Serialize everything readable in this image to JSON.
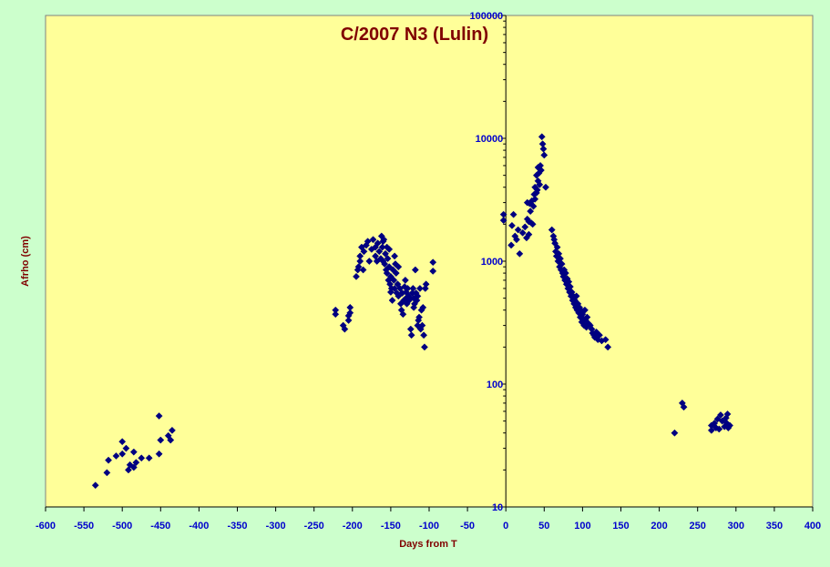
{
  "colors": {
    "background": "#ccffcc",
    "plot_area": "#ffff99",
    "marker": "#000080",
    "title": "#800000",
    "tick_labels": "#0000cc"
  },
  "chart_data": {
    "type": "scatter",
    "title": "C/2007 N3 (Lulin)",
    "xlabel": "Days from T",
    "ylabel": "Afrho (cm)",
    "xlim": [
      -600,
      400
    ],
    "ylim": [
      10,
      100000
    ],
    "y_scale": "log",
    "x_ticks": [
      -600,
      -550,
      -500,
      -450,
      -400,
      -350,
      -300,
      -250,
      -200,
      -150,
      -100,
      -50,
      0,
      50,
      100,
      150,
      200,
      250,
      300,
      350,
      400
    ],
    "y_ticks": [
      10,
      100,
      1000,
      10000,
      100000
    ],
    "y_axis_crosses_at_x": 0,
    "grid": false,
    "marker": "diamond",
    "series": [
      {
        "points": [
          [
            -535,
            15
          ],
          [
            -520,
            19
          ],
          [
            -518,
            24
          ],
          [
            -508,
            26
          ],
          [
            -500,
            34
          ],
          [
            -500,
            27
          ],
          [
            -495,
            30
          ],
          [
            -492,
            20
          ],
          [
            -490,
            22
          ],
          [
            -485,
            28
          ],
          [
            -485,
            21
          ],
          [
            -482,
            23
          ],
          [
            -475,
            25
          ],
          [
            -465,
            25
          ],
          [
            -452,
            55
          ],
          [
            -452,
            27
          ],
          [
            -450,
            35
          ],
          [
            -440,
            38
          ],
          [
            -437,
            35
          ],
          [
            -435,
            42
          ],
          [
            -222,
            370
          ],
          [
            -222,
            400
          ],
          [
            -212,
            300
          ],
          [
            -210,
            280
          ],
          [
            -205,
            330
          ],
          [
            -205,
            360
          ],
          [
            -203,
            380
          ],
          [
            -203,
            420
          ],
          [
            -195,
            750
          ],
          [
            -193,
            850
          ],
          [
            -192,
            900
          ],
          [
            -190,
            1000
          ],
          [
            -190,
            1100
          ],
          [
            -188,
            1300
          ],
          [
            -186,
            850
          ],
          [
            -185,
            1200
          ],
          [
            -182,
            1350
          ],
          [
            -180,
            1450
          ],
          [
            -178,
            1000
          ],
          [
            -175,
            1250
          ],
          [
            -173,
            1500
          ],
          [
            -170,
            1300
          ],
          [
            -170,
            1100
          ],
          [
            -168,
            1000
          ],
          [
            -167,
            1400
          ],
          [
            -165,
            1200
          ],
          [
            -163,
            1050
          ],
          [
            -162,
            1600
          ],
          [
            -161,
            1300
          ],
          [
            -160,
            1450
          ],
          [
            -160,
            1000
          ],
          [
            -159,
            1500
          ],
          [
            -158,
            950
          ],
          [
            -157,
            1150
          ],
          [
            -156,
            850
          ],
          [
            -155,
            1300
          ],
          [
            -155,
            800
          ],
          [
            -154,
            1050
          ],
          [
            -153,
            700
          ],
          [
            -152,
            1250
          ],
          [
            -152,
            900
          ],
          [
            -151,
            650
          ],
          [
            -150,
            750
          ],
          [
            -150,
            560
          ],
          [
            -149,
            600
          ],
          [
            -148,
            480
          ],
          [
            -147,
            850
          ],
          [
            -146,
            700
          ],
          [
            -145,
            1100
          ],
          [
            -145,
            600
          ],
          [
            -144,
            950
          ],
          [
            -143,
            800
          ],
          [
            -142,
            550
          ],
          [
            -141,
            650
          ],
          [
            -140,
            900
          ],
          [
            -140,
            520
          ],
          [
            -138,
            600
          ],
          [
            -137,
            450
          ],
          [
            -136,
            400
          ],
          [
            -135,
            550
          ],
          [
            -134,
            370
          ],
          [
            -133,
            480
          ],
          [
            -132,
            620
          ],
          [
            -131,
            700
          ],
          [
            -130,
            500
          ],
          [
            -130,
            560
          ],
          [
            -129,
            450
          ],
          [
            -128,
            600
          ],
          [
            -127,
            520
          ],
          [
            -126,
            480
          ],
          [
            -125,
            500
          ],
          [
            -124,
            280
          ],
          [
            -123,
            250
          ],
          [
            -122,
            550
          ],
          [
            -121,
            600
          ],
          [
            -120,
            420
          ],
          [
            -120,
            500
          ],
          [
            -119,
            450
          ],
          [
            -118,
            850
          ],
          [
            -117,
            550
          ],
          [
            -116,
            480
          ],
          [
            -115,
            520
          ],
          [
            -115,
            300
          ],
          [
            -114,
            330
          ],
          [
            -113,
            350
          ],
          [
            -112,
            600
          ],
          [
            -111,
            280
          ],
          [
            -110,
            400
          ],
          [
            -109,
            300
          ],
          [
            -108,
            420
          ],
          [
            -107,
            250
          ],
          [
            -106,
            200
          ],
          [
            -105,
            600
          ],
          [
            -104,
            650
          ],
          [
            -95,
            830
          ],
          [
            -95,
            980
          ],
          [
            -3,
            2400
          ],
          [
            -3,
            2150
          ],
          [
            7,
            1350
          ],
          [
            8,
            1950
          ],
          [
            10,
            2400
          ],
          [
            12,
            1600
          ],
          [
            14,
            1500
          ],
          [
            16,
            1800
          ],
          [
            18,
            1150
          ],
          [
            22,
            1700
          ],
          [
            25,
            1900
          ],
          [
            27,
            1550
          ],
          [
            28,
            2200
          ],
          [
            28,
            3000
          ],
          [
            30,
            1650
          ],
          [
            30,
            2100
          ],
          [
            31,
            2950
          ],
          [
            32,
            2550
          ],
          [
            33,
            2050
          ],
          [
            34,
            3100
          ],
          [
            35,
            2000
          ],
          [
            36,
            2800
          ],
          [
            37,
            3500
          ],
          [
            38,
            3200
          ],
          [
            38,
            4000
          ],
          [
            40,
            3600
          ],
          [
            40,
            5000
          ],
          [
            41,
            3800
          ],
          [
            42,
            4500
          ],
          [
            42,
            5800
          ],
          [
            43,
            5200
          ],
          [
            44,
            4200
          ],
          [
            45,
            6000
          ],
          [
            46,
            5500
          ],
          [
            47,
            10300
          ],
          [
            48,
            9000
          ],
          [
            49,
            8200
          ],
          [
            50,
            7300
          ],
          [
            52,
            4000
          ],
          [
            60,
            1800
          ],
          [
            62,
            1600
          ],
          [
            63,
            1500
          ],
          [
            64,
            1400
          ],
          [
            65,
            1200
          ],
          [
            66,
            1100
          ],
          [
            67,
            1300
          ],
          [
            68,
            1000
          ],
          [
            69,
            1150
          ],
          [
            70,
            900
          ],
          [
            71,
            1050
          ],
          [
            72,
            850
          ],
          [
            73,
            950
          ],
          [
            74,
            800
          ],
          [
            75,
            750
          ],
          [
            76,
            850
          ],
          [
            77,
            700
          ],
          [
            78,
            800
          ],
          [
            79,
            650
          ],
          [
            80,
            720
          ],
          [
            81,
            600
          ],
          [
            82,
            680
          ],
          [
            83,
            560
          ],
          [
            84,
            620
          ],
          [
            85,
            520
          ],
          [
            86,
            560
          ],
          [
            87,
            480
          ],
          [
            88,
            520
          ],
          [
            89,
            450
          ],
          [
            90,
            480
          ],
          [
            91,
            420
          ],
          [
            92,
            520
          ],
          [
            93,
            400
          ],
          [
            94,
            450
          ],
          [
            95,
            380
          ],
          [
            96,
            420
          ],
          [
            97,
            350
          ],
          [
            98,
            400
          ],
          [
            99,
            320
          ],
          [
            100,
            370
          ],
          [
            101,
            340
          ],
          [
            102,
            300
          ],
          [
            103,
            400
          ],
          [
            104,
            330
          ],
          [
            105,
            290
          ],
          [
            106,
            350
          ],
          [
            108,
            310
          ],
          [
            110,
            300
          ],
          [
            112,
            280
          ],
          [
            113,
            260
          ],
          [
            115,
            250
          ],
          [
            116,
            240
          ],
          [
            118,
            265
          ],
          [
            120,
            230
          ],
          [
            122,
            250
          ],
          [
            125,
            225
          ],
          [
            130,
            230
          ],
          [
            133,
            200
          ],
          [
            220,
            40
          ],
          [
            230,
            70
          ],
          [
            232,
            65
          ],
          [
            268,
            42
          ],
          [
            268,
            46
          ],
          [
            272,
            48
          ],
          [
            274,
            44
          ],
          [
            276,
            52
          ],
          [
            278,
            43
          ],
          [
            280,
            56
          ],
          [
            282,
            50
          ],
          [
            285,
            45
          ],
          [
            287,
            53
          ],
          [
            288,
            48
          ],
          [
            289,
            57
          ],
          [
            290,
            44
          ],
          [
            292,
            46
          ]
        ]
      }
    ]
  }
}
